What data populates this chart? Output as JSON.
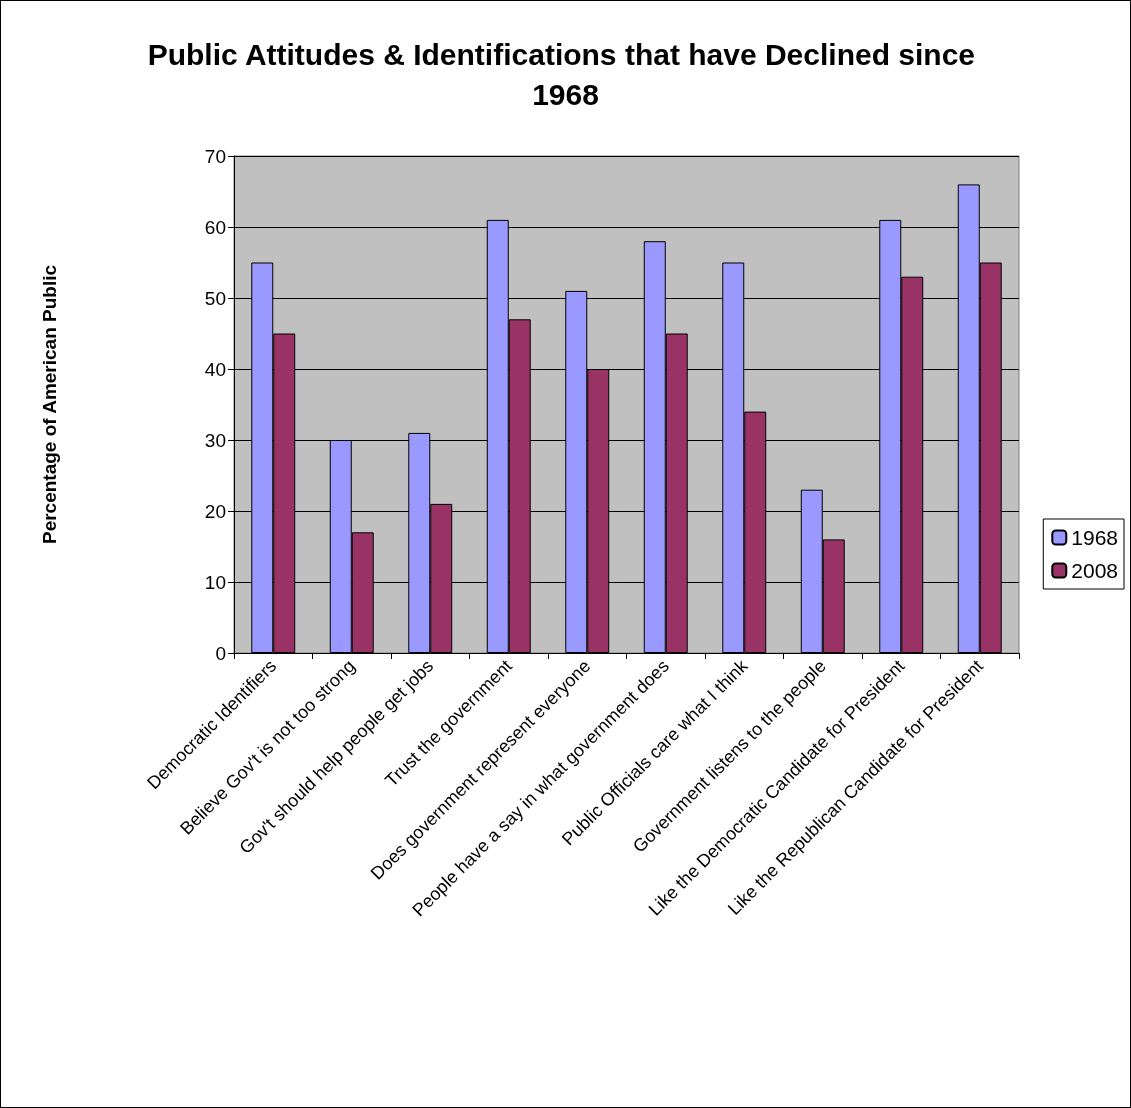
{
  "chart_data": {
    "type": "bar",
    "title": "Public Attitudes & Identifications that have Declined since 1968",
    "ylabel": "Percentage of American Public",
    "categories": [
      "Democratic Identifiers",
      "Believe Gov't is not too strong",
      "Gov't should help people get jobs",
      "Trust the government",
      "Does government represent everyone",
      "People have a say in what government does",
      "Public Officials care what I think",
      "Government listens to the people",
      "Like the Democratic Candidate for President",
      "Like the Republican Candidate for President"
    ],
    "series": [
      {
        "name": "1968",
        "color": "#9999ff",
        "values": [
          55,
          30,
          31,
          61,
          51,
          58,
          55,
          23,
          61,
          66
        ]
      },
      {
        "name": "2008",
        "color": "#993366",
        "values": [
          45,
          17,
          21,
          47,
          40,
          45,
          34,
          16,
          53,
          55
        ]
      }
    ],
    "ylim": [
      0,
      70
    ],
    "yticks": [
      0,
      10,
      20,
      30,
      40,
      50,
      60,
      70
    ],
    "grid": "y",
    "legend": "right"
  }
}
